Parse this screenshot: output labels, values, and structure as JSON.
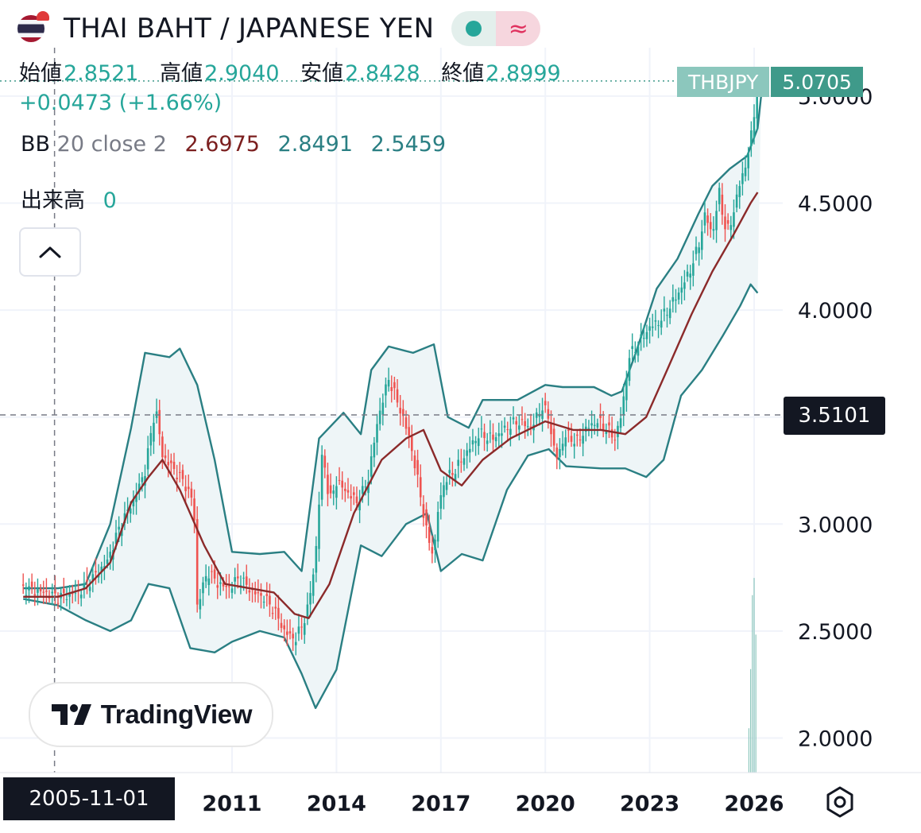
{
  "header": {
    "title": "THAI BAHT / JAPANESE YEN",
    "flag_icon": "thailand-flag-icon",
    "status_icon": "market-status-dot-icon",
    "wave_icon": "approx-wave-icon",
    "status_color": "#26a69a",
    "wave_color": "#e0325f"
  },
  "ohlc": {
    "open_label": "始値",
    "open": "2.8521",
    "high_label": "高値",
    "high": "2.9040",
    "low_label": "安値",
    "low": "2.8428",
    "close_label": "終値",
    "close": "2.8999",
    "change": "+0.0473 (+1.66%)"
  },
  "indicator": {
    "name": "BB",
    "params": "20 close 2",
    "middle": "2.6975",
    "upper": "2.8491",
    "lower": "2.5459",
    "middle_color": "#8b2a2a",
    "band_color": "#2a7f83",
    "fill_color": "#eef5f7"
  },
  "volume": {
    "label": "出来高",
    "value": "0"
  },
  "symbol_tag": {
    "name": "THBJPY",
    "price": "5.0705"
  },
  "crosshair": {
    "price": "3.5101",
    "date": "2005-11-01"
  },
  "logo": {
    "text": "TradingView"
  },
  "colors": {
    "up": "#26a69a",
    "down": "#ef5350",
    "grid": "#f0f3fa"
  },
  "chart_data": {
    "type": "candlestick",
    "title": "THAI BAHT / JAPANESE YEN",
    "interval": "monthly",
    "x_axis_labels": [
      "2011",
      "2014",
      "2017",
      "2020",
      "2023",
      "2026"
    ],
    "y_axis_labels": [
      "2.0000",
      "2.5000",
      "3.0000",
      "3.5000",
      "4.0000",
      "4.5000",
      "5.0000"
    ],
    "ylim": [
      1.84,
      5.4
    ],
    "xlim": [
      2005.0,
      2026.3
    ],
    "grid": true,
    "price_trend": [
      [
        2005.0,
        2.7
      ],
      [
        2005.6,
        2.68
      ],
      [
        2006.0,
        2.66
      ],
      [
        2006.6,
        2.68
      ],
      [
        2007.0,
        2.75
      ],
      [
        2007.4,
        2.82
      ],
      [
        2007.8,
        3.0
      ],
      [
        2008.2,
        3.12
      ],
      [
        2008.5,
        3.25
      ],
      [
        2008.8,
        3.55
      ],
      [
        2009.0,
        3.32
      ],
      [
        2009.3,
        3.26
      ],
      [
        2009.6,
        3.2
      ],
      [
        2009.9,
        3.1
      ],
      [
        2010.0,
        2.62
      ],
      [
        2010.3,
        2.78
      ],
      [
        2010.6,
        2.72
      ],
      [
        2010.9,
        2.7
      ],
      [
        2011.2,
        2.75
      ],
      [
        2011.6,
        2.68
      ],
      [
        2011.9,
        2.66
      ],
      [
        2012.2,
        2.6
      ],
      [
        2012.5,
        2.5
      ],
      [
        2012.8,
        2.46
      ],
      [
        2013.0,
        2.52
      ],
      [
        2013.2,
        2.62
      ],
      [
        2013.4,
        2.85
      ],
      [
        2013.6,
        3.35
      ],
      [
        2013.8,
        3.1
      ],
      [
        2014.0,
        3.2
      ],
      [
        2014.3,
        3.15
      ],
      [
        2014.6,
        3.1
      ],
      [
        2014.9,
        3.2
      ],
      [
        2015.2,
        3.5
      ],
      [
        2015.5,
        3.68
      ],
      [
        2015.8,
        3.55
      ],
      [
        2016.1,
        3.4
      ],
      [
        2016.4,
        3.15
      ],
      [
        2016.6,
        2.95
      ],
      [
        2016.8,
        2.85
      ],
      [
        2016.9,
        3.05
      ],
      [
        2017.1,
        3.2
      ],
      [
        2017.4,
        3.25
      ],
      [
        2017.8,
        3.35
      ],
      [
        2018.1,
        3.42
      ],
      [
        2018.5,
        3.4
      ],
      [
        2018.9,
        3.45
      ],
      [
        2019.2,
        3.48
      ],
      [
        2019.6,
        3.45
      ],
      [
        2019.9,
        3.55
      ],
      [
        2020.1,
        3.5
      ],
      [
        2020.3,
        3.3
      ],
      [
        2020.6,
        3.42
      ],
      [
        2020.9,
        3.38
      ],
      [
        2021.2,
        3.45
      ],
      [
        2021.5,
        3.48
      ],
      [
        2021.8,
        3.44
      ],
      [
        2022.0,
        3.4
      ],
      [
        2022.2,
        3.52
      ],
      [
        2022.4,
        3.78
      ],
      [
        2022.7,
        3.85
      ],
      [
        2023.0,
        3.92
      ],
      [
        2023.3,
        3.95
      ],
      [
        2023.6,
        4.02
      ],
      [
        2023.9,
        4.1
      ],
      [
        2024.2,
        4.2
      ],
      [
        2024.4,
        4.3
      ],
      [
        2024.6,
        4.45
      ],
      [
        2024.8,
        4.35
      ],
      [
        2025.0,
        4.55
      ],
      [
        2025.2,
        4.35
      ],
      [
        2025.4,
        4.45
      ],
      [
        2025.6,
        4.6
      ],
      [
        2025.8,
        4.7
      ],
      [
        2025.95,
        4.85
      ],
      [
        2026.05,
        5.0
      ],
      [
        2026.15,
        5.07
      ]
    ],
    "bb_middle": [
      [
        2005.0,
        2.66
      ],
      [
        2006.0,
        2.66
      ],
      [
        2006.8,
        2.7
      ],
      [
        2007.5,
        2.82
      ],
      [
        2008.1,
        3.1
      ],
      [
        2008.6,
        3.22
      ],
      [
        2009.0,
        3.3
      ],
      [
        2009.5,
        3.16
      ],
      [
        2010.2,
        2.9
      ],
      [
        2010.8,
        2.72
      ],
      [
        2011.5,
        2.7
      ],
      [
        2012.2,
        2.68
      ],
      [
        2012.8,
        2.58
      ],
      [
        2013.2,
        2.56
      ],
      [
        2013.8,
        2.72
      ],
      [
        2014.5,
        3.05
      ],
      [
        2015.3,
        3.3
      ],
      [
        2016.0,
        3.4
      ],
      [
        2016.5,
        3.44
      ],
      [
        2017.0,
        3.25
      ],
      [
        2017.6,
        3.18
      ],
      [
        2018.2,
        3.3
      ],
      [
        2019.0,
        3.4
      ],
      [
        2020.0,
        3.48
      ],
      [
        2020.8,
        3.44
      ],
      [
        2021.6,
        3.44
      ],
      [
        2022.3,
        3.42
      ],
      [
        2022.9,
        3.5
      ],
      [
        2023.5,
        3.72
      ],
      [
        2024.2,
        3.98
      ],
      [
        2024.8,
        4.18
      ],
      [
        2025.4,
        4.35
      ],
      [
        2025.9,
        4.5
      ],
      [
        2026.1,
        4.55
      ]
    ],
    "bb_upper": [
      [
        2005.0,
        2.7
      ],
      [
        2006.0,
        2.7
      ],
      [
        2006.8,
        2.72
      ],
      [
        2007.5,
        3.0
      ],
      [
        2008.1,
        3.45
      ],
      [
        2008.5,
        3.8
      ],
      [
        2009.2,
        3.78
      ],
      [
        2009.5,
        3.82
      ],
      [
        2010.0,
        3.65
      ],
      [
        2010.5,
        3.3
      ],
      [
        2011.0,
        2.87
      ],
      [
        2011.8,
        2.86
      ],
      [
        2012.5,
        2.87
      ],
      [
        2013.0,
        2.78
      ],
      [
        2013.5,
        3.4
      ],
      [
        2014.2,
        3.52
      ],
      [
        2014.7,
        3.42
      ],
      [
        2015.0,
        3.72
      ],
      [
        2015.5,
        3.83
      ],
      [
        2016.2,
        3.8
      ],
      [
        2016.8,
        3.84
      ],
      [
        2017.2,
        3.5
      ],
      [
        2017.8,
        3.45
      ],
      [
        2018.2,
        3.58
      ],
      [
        2019.2,
        3.58
      ],
      [
        2020.0,
        3.65
      ],
      [
        2020.5,
        3.64
      ],
      [
        2021.4,
        3.64
      ],
      [
        2021.9,
        3.6
      ],
      [
        2022.2,
        3.62
      ],
      [
        2022.6,
        3.8
      ],
      [
        2023.2,
        4.1
      ],
      [
        2023.8,
        4.24
      ],
      [
        2024.4,
        4.45
      ],
      [
        2024.8,
        4.58
      ],
      [
        2025.3,
        4.66
      ],
      [
        2025.8,
        4.72
      ],
      [
        2026.1,
        4.85
      ],
      [
        2026.2,
        5.0
      ]
    ],
    "bb_lower": [
      [
        2005.0,
        2.65
      ],
      [
        2006.0,
        2.62
      ],
      [
        2006.8,
        2.55
      ],
      [
        2007.5,
        2.5
      ],
      [
        2008.1,
        2.55
      ],
      [
        2008.6,
        2.72
      ],
      [
        2009.2,
        2.7
      ],
      [
        2009.8,
        2.42
      ],
      [
        2010.5,
        2.4
      ],
      [
        2011.0,
        2.45
      ],
      [
        2011.8,
        2.5
      ],
      [
        2012.5,
        2.47
      ],
      [
        2013.0,
        2.3
      ],
      [
        2013.4,
        2.14
      ],
      [
        2014.0,
        2.32
      ],
      [
        2014.7,
        2.9
      ],
      [
        2015.3,
        2.85
      ],
      [
        2016.0,
        3.0
      ],
      [
        2016.6,
        3.05
      ],
      [
        2017.0,
        2.78
      ],
      [
        2017.6,
        2.86
      ],
      [
        2018.2,
        2.83
      ],
      [
        2018.9,
        3.16
      ],
      [
        2019.5,
        3.32
      ],
      [
        2020.1,
        3.35
      ],
      [
        2020.6,
        3.27
      ],
      [
        2021.6,
        3.26
      ],
      [
        2022.3,
        3.26
      ],
      [
        2022.9,
        3.22
      ],
      [
        2023.4,
        3.3
      ],
      [
        2023.9,
        3.6
      ],
      [
        2024.5,
        3.72
      ],
      [
        2025.1,
        3.88
      ],
      [
        2025.6,
        4.02
      ],
      [
        2025.9,
        4.12
      ],
      [
        2026.1,
        4.08
      ]
    ],
    "volume_spikes": [
      [
        2025.85,
        0.18
      ],
      [
        2025.9,
        0.42
      ],
      [
        2025.95,
        0.72
      ],
      [
        2026.0,
        0.79
      ],
      [
        2026.05,
        0.56
      ]
    ]
  }
}
